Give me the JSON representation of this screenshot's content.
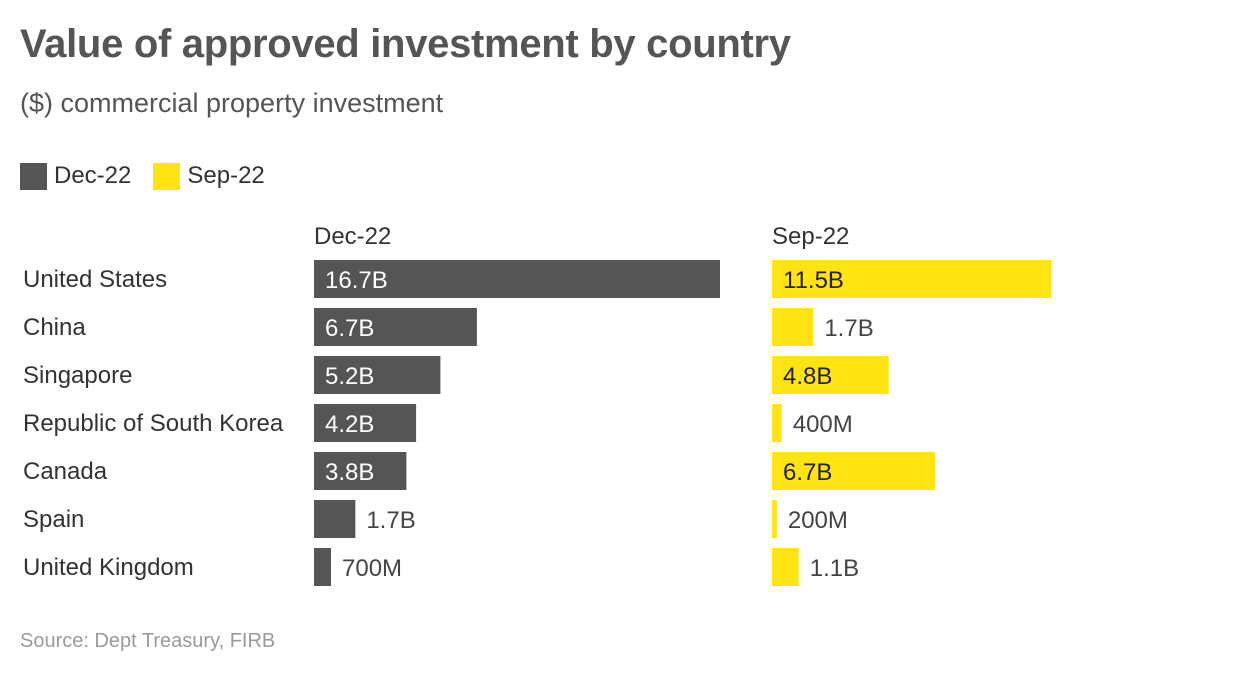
{
  "title": "Value of approved investment by country",
  "subtitle": "($) commercial property investment",
  "source": "Source: Dept Treasury, FIRB",
  "legend": [
    {
      "label": "Dec-22",
      "color": "#555555"
    },
    {
      "label": "Sep-22",
      "color": "#FFE312"
    }
  ],
  "chart_data": {
    "type": "bar",
    "orientation": "horizontal",
    "categories": [
      "United States",
      "China",
      "Singapore",
      "Republic of South Korea",
      "Canada",
      "Spain",
      "United Kingdom"
    ],
    "series": [
      {
        "name": "Dec-22",
        "color": "#555555",
        "values": [
          16.7,
          6.7,
          5.2,
          4.2,
          3.8,
          1.7,
          0.7
        ],
        "labels": [
          "16.7B",
          "6.7B",
          "5.2B",
          "4.2B",
          "3.8B",
          "1.7B",
          "700M"
        ]
      },
      {
        "name": "Sep-22",
        "color": "#FFE312",
        "values": [
          11.5,
          1.7,
          4.8,
          0.4,
          6.7,
          0.2,
          1.1
        ],
        "labels": [
          "11.5B",
          "1.7B",
          "4.8B",
          "400M",
          "6.7B",
          "200M",
          "1.1B"
        ]
      }
    ],
    "unit": "$ billions",
    "xlim": [
      0,
      16.7
    ],
    "grid": false,
    "legend_position": "top-left"
  }
}
